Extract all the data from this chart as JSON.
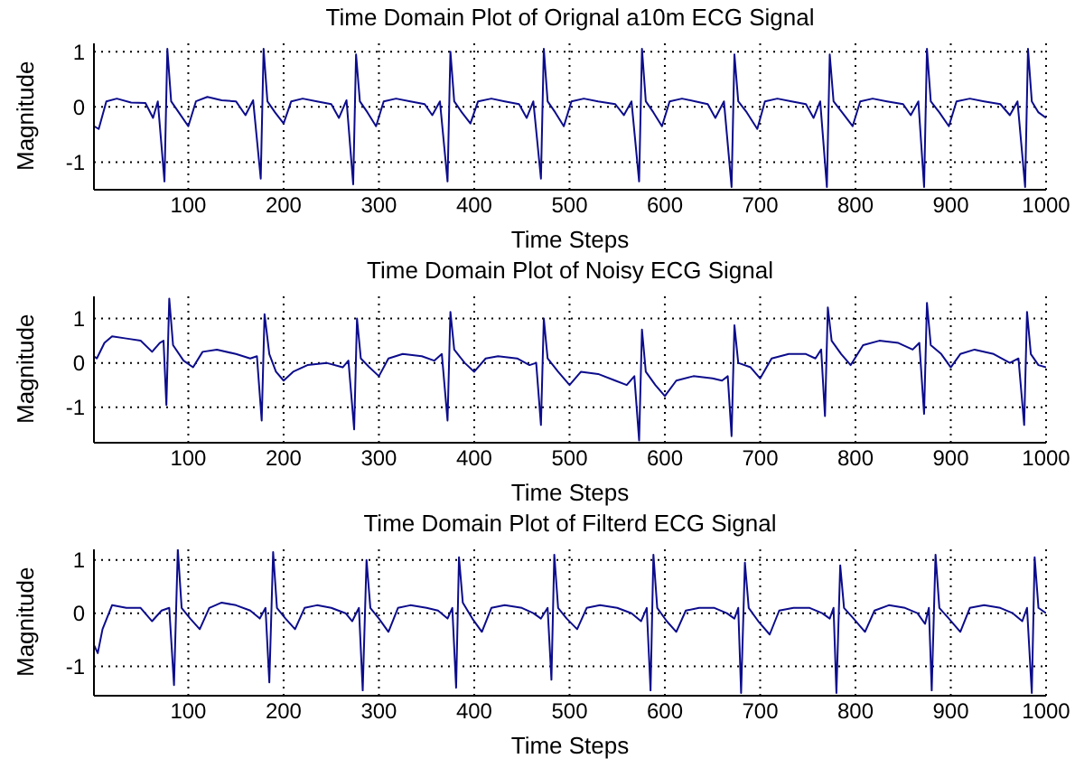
{
  "chart_data": [
    {
      "type": "line",
      "title": "Time Domain Plot of Orignal a10m ECG Signal",
      "xlabel": "Time Steps",
      "ylabel": "Magnitude",
      "color": "#0c0c8c",
      "xlim": [
        1,
        1000
      ],
      "ylim": [
        -1.5,
        1.15
      ],
      "xticks": [
        100,
        200,
        300,
        400,
        500,
        600,
        700,
        800,
        900,
        1000
      ],
      "yticks": [
        -1,
        0,
        1
      ],
      "grid": true,
      "x": [
        1,
        6,
        14,
        25,
        40,
        55,
        63,
        68,
        75,
        78,
        82,
        90,
        100,
        108,
        120,
        135,
        150,
        160,
        168,
        176,
        179,
        183,
        191,
        200,
        208,
        220,
        235,
        250,
        258,
        266,
        273,
        276,
        280,
        288,
        297,
        305,
        318,
        333,
        348,
        356,
        364,
        372,
        375,
        379,
        387,
        396,
        404,
        418,
        432,
        447,
        455,
        462,
        470,
        473,
        477,
        485,
        494,
        502,
        515,
        530,
        548,
        557,
        565,
        573,
        576,
        580,
        588,
        597,
        605,
        618,
        632,
        645,
        653,
        662,
        670,
        673,
        677,
        686,
        697,
        705,
        718,
        733,
        748,
        756,
        763,
        770,
        773,
        777,
        786,
        797,
        805,
        818,
        833,
        850,
        858,
        866,
        872,
        875,
        879,
        888,
        898,
        906,
        920,
        935,
        952,
        962,
        970,
        978,
        981,
        985,
        992,
        1000
      ],
      "values": [
        -0.35,
        -0.4,
        0.1,
        0.15,
        0.08,
        0.07,
        -0.2,
        0.1,
        -1.35,
        1.05,
        0.1,
        -0.1,
        -0.35,
        0.1,
        0.18,
        0.12,
        0.1,
        -0.15,
        0.12,
        -1.3,
        1.05,
        0.1,
        -0.1,
        -0.3,
        0.1,
        0.15,
        0.1,
        0.05,
        -0.2,
        0.12,
        -1.4,
        0.95,
        0.1,
        -0.1,
        -0.35,
        0.1,
        0.15,
        0.1,
        0.05,
        -0.15,
        0.1,
        -1.35,
        1.0,
        0.1,
        -0.1,
        -0.3,
        0.1,
        0.15,
        0.1,
        0.05,
        -0.2,
        0.1,
        -1.3,
        1.05,
        0.1,
        -0.1,
        -0.35,
        0.1,
        0.15,
        0.1,
        0.05,
        -0.15,
        0.1,
        -1.35,
        1.05,
        0.1,
        -0.1,
        -0.35,
        0.1,
        0.15,
        0.1,
        0.05,
        -0.2,
        0.1,
        -1.45,
        0.95,
        0.1,
        -0.1,
        -0.4,
        0.1,
        0.15,
        0.1,
        0.05,
        -0.2,
        0.1,
        -1.45,
        0.95,
        0.1,
        -0.1,
        -0.35,
        0.1,
        0.15,
        0.1,
        0.05,
        -0.15,
        0.1,
        -1.45,
        1.05,
        0.1,
        -0.1,
        -0.35,
        0.1,
        0.15,
        0.1,
        0.05,
        -0.15,
        0.1,
        -1.45,
        1.05,
        0.1,
        -0.1,
        -0.2
      ]
    },
    {
      "type": "line",
      "title": "Time Domain Plot of Noisy ECG Signal",
      "xlabel": "Time Steps",
      "ylabel": "Magnitude",
      "color": "#0c0c8c",
      "xlim": [
        1,
        1000
      ],
      "ylim": [
        -1.8,
        1.5
      ],
      "xticks": [
        100,
        200,
        300,
        400,
        500,
        600,
        700,
        800,
        900,
        1000
      ],
      "yticks": [
        -1,
        0,
        1
      ],
      "grid": true,
      "x": [
        1,
        4,
        12,
        20,
        35,
        50,
        62,
        70,
        74,
        77,
        80,
        84,
        95,
        105,
        115,
        130,
        150,
        165,
        172,
        177,
        180,
        185,
        192,
        200,
        210,
        225,
        245,
        262,
        268,
        274,
        277,
        281,
        290,
        300,
        310,
        325,
        345,
        358,
        366,
        372,
        375,
        379,
        390,
        400,
        412,
        425,
        445,
        458,
        465,
        470,
        473,
        477,
        488,
        500,
        512,
        530,
        548,
        560,
        568,
        573,
        576,
        580,
        590,
        600,
        612,
        630,
        650,
        660,
        666,
        670,
        673,
        677,
        690,
        700,
        712,
        730,
        748,
        758,
        764,
        768,
        771,
        775,
        785,
        795,
        808,
        825,
        845,
        860,
        867,
        872,
        875,
        879,
        890,
        900,
        910,
        925,
        945,
        962,
        971,
        977,
        980,
        984,
        992,
        1000
      ],
      "values": [
        0.15,
        0.1,
        0.45,
        0.6,
        0.55,
        0.5,
        0.25,
        0.45,
        0.5,
        -0.95,
        1.45,
        0.4,
        0.05,
        -0.1,
        0.25,
        0.3,
        0.2,
        0.1,
        0.15,
        -1.3,
        1.1,
        0.2,
        -0.2,
        -0.4,
        -0.2,
        -0.05,
        0.0,
        -0.1,
        0.05,
        -1.5,
        1.0,
        0.1,
        -0.1,
        -0.3,
        0.1,
        0.2,
        0.15,
        0.05,
        0.2,
        -1.3,
        1.15,
        0.3,
        0.0,
        -0.2,
        0.1,
        0.15,
        0.1,
        -0.05,
        0.0,
        -1.4,
        1.0,
        0.1,
        -0.2,
        -0.5,
        -0.2,
        -0.25,
        -0.4,
        -0.5,
        -0.3,
        -1.75,
        0.75,
        -0.2,
        -0.5,
        -0.75,
        -0.4,
        -0.3,
        -0.35,
        -0.4,
        -0.3,
        -1.65,
        0.85,
        0.0,
        -0.1,
        -0.35,
        0.1,
        0.2,
        0.2,
        0.1,
        0.3,
        -1.2,
        1.25,
        0.5,
        0.2,
        -0.05,
        0.4,
        0.5,
        0.45,
        0.3,
        0.45,
        -1.15,
        1.35,
        0.4,
        0.2,
        -0.1,
        0.2,
        0.3,
        0.2,
        0.0,
        0.1,
        -1.4,
        1.15,
        0.2,
        -0.05,
        -0.1
      ]
    },
    {
      "type": "line",
      "title": "Time Domain Plot of Filterd ECG Signal",
      "xlabel": "Time Steps",
      "ylabel": "Magnitude",
      "color": "#0c0c8c",
      "xlim": [
        1,
        1000
      ],
      "ylim": [
        -1.55,
        1.2
      ],
      "xticks": [
        100,
        200,
        300,
        400,
        500,
        600,
        700,
        800,
        900,
        1000
      ],
      "yticks": [
        -1,
        0,
        1
      ],
      "grid": true,
      "x": [
        1,
        5,
        10,
        20,
        35,
        50,
        62,
        72,
        80,
        85,
        89,
        93,
        102,
        112,
        122,
        135,
        150,
        165,
        175,
        181,
        185,
        189,
        193,
        202,
        212,
        222,
        235,
        250,
        265,
        272,
        279,
        283,
        287,
        291,
        300,
        310,
        320,
        333,
        350,
        362,
        372,
        377,
        381,
        384,
        388,
        398,
        408,
        418,
        432,
        450,
        462,
        470,
        477,
        481,
        484,
        488,
        497,
        508,
        518,
        532,
        550,
        565,
        575,
        581,
        585,
        588,
        592,
        602,
        612,
        622,
        636,
        652,
        665,
        673,
        677,
        680,
        684,
        688,
        698,
        710,
        720,
        735,
        752,
        765,
        773,
        777,
        780,
        784,
        788,
        798,
        810,
        820,
        835,
        852,
        865,
        873,
        877,
        880,
        884,
        888,
        898,
        910,
        920,
        935,
        952,
        965,
        975,
        980,
        985,
        988,
        992,
        1000
      ],
      "values": [
        -0.6,
        -0.75,
        -0.3,
        0.15,
        0.1,
        0.1,
        -0.15,
        0.05,
        0.1,
        -1.35,
        1.2,
        0.1,
        -0.1,
        -0.3,
        0.1,
        0.2,
        0.15,
        0.05,
        -0.1,
        0.1,
        -1.3,
        1.15,
        0.1,
        -0.1,
        -0.3,
        0.1,
        0.15,
        0.1,
        0.0,
        -0.15,
        0.1,
        -1.45,
        1.0,
        0.1,
        -0.1,
        -0.35,
        0.1,
        0.15,
        0.1,
        0.05,
        -0.1,
        0.1,
        -1.4,
        1.05,
        0.2,
        -0.1,
        -0.35,
        0.1,
        0.15,
        0.1,
        0.0,
        -0.1,
        0.1,
        -1.25,
        1.1,
        0.1,
        -0.1,
        -0.3,
        0.1,
        0.15,
        0.1,
        0.0,
        -0.15,
        0.1,
        -1.45,
        1.1,
        0.1,
        -0.15,
        -0.35,
        0.05,
        0.1,
        0.1,
        0.0,
        -0.1,
        0.1,
        -1.5,
        0.95,
        0.1,
        -0.15,
        -0.4,
        0.05,
        0.1,
        0.1,
        0.0,
        -0.1,
        0.1,
        -1.5,
        0.9,
        0.1,
        -0.1,
        -0.35,
        0.05,
        0.15,
        0.1,
        0.0,
        -0.2,
        0.1,
        -1.45,
        1.1,
        0.1,
        -0.1,
        -0.35,
        0.1,
        0.15,
        0.1,
        0.0,
        -0.15,
        0.1,
        -1.5,
        1.05,
        0.1,
        0.0
      ]
    }
  ]
}
